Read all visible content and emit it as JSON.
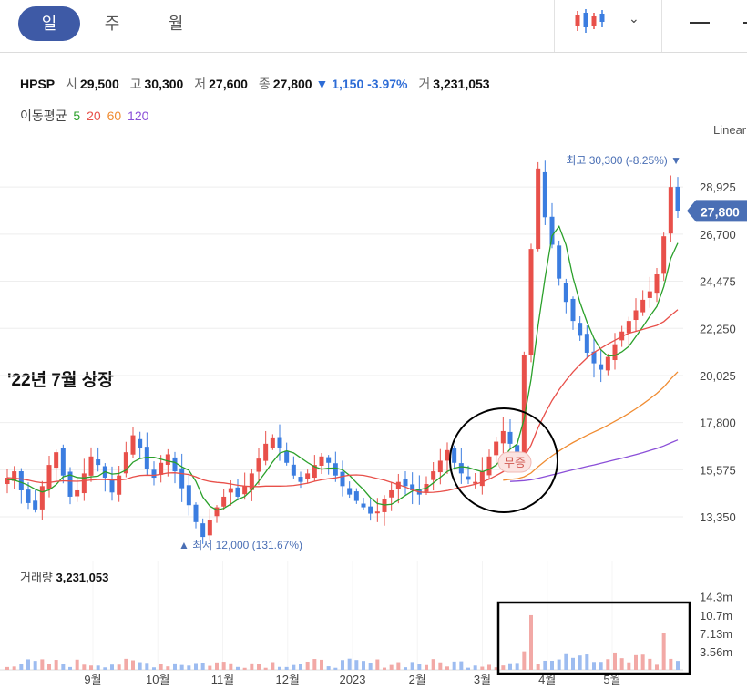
{
  "tabs": [
    {
      "label": "일",
      "active": true
    },
    {
      "label": "주",
      "active": false
    },
    {
      "label": "월",
      "active": false
    }
  ],
  "toolbar": {
    "chart_type_icon": "candlestick-icon",
    "dropdown_icon": "chevron-down-icon",
    "minimize_icon": "minus-icon"
  },
  "quote": {
    "symbol": "HPSP",
    "open_label": "시",
    "open": "29,500",
    "high_label": "고",
    "high": "30,300",
    "low_label": "저",
    "low": "27,600",
    "close_label": "종",
    "close": "27,800",
    "change_arrow": "▼",
    "change": "1,150",
    "change_pct": "-3.97%",
    "volume_label": "거",
    "volume": "3,231,053"
  },
  "moving_average": {
    "label": "이동평균",
    "periods": [
      {
        "value": "5",
        "color": "#2aa02a"
      },
      {
        "value": "20",
        "color": "#e8504a"
      },
      {
        "value": "60",
        "color": "#f08c32"
      },
      {
        "value": "120",
        "color": "#8b4fd8"
      }
    ]
  },
  "scale_label": "Linear",
  "annotation": "'22년 7월 상장",
  "max_marker": {
    "prefix": "최고",
    "value": "30,300 (-8.25%)",
    "arrow": "▼"
  },
  "min_marker": {
    "arrow": "▲",
    "prefix": "최저",
    "value": "12,000 (131.67%)"
  },
  "event_tag": "무증",
  "volume_panel": {
    "label": "거래량",
    "value": "3,231,053",
    "ticks": [
      "14.3m",
      "10.7m",
      "7.13m",
      "3.56m"
    ]
  },
  "colors": {
    "up": "#e8504a",
    "down": "#3b7de0",
    "accent": "#3e5aa6",
    "price_tag": "#4a6fb5"
  },
  "chart_data": {
    "type": "candlestick",
    "price_axis": {
      "ticks": [
        28925,
        26700,
        24475,
        22250,
        20025,
        17800,
        15575,
        13350
      ],
      "tick_labels": [
        "28,925",
        "26,700",
        "24,475",
        "22,250",
        "20,025",
        "17,800",
        "15,575",
        "13,350"
      ],
      "ylim": [
        11500,
        31300
      ],
      "scale": "linear"
    },
    "last_price": {
      "value": 27800,
      "label": "27,800"
    },
    "x_axis": {
      "labels": [
        "9월",
        "10월",
        "11월",
        "12월",
        "2023",
        "2월",
        "3월",
        "4월",
        "5월"
      ]
    },
    "grid": true,
    "max_price": 30300,
    "min_price": 12000,
    "close_series": [
      15200,
      15500,
      14600,
      14000,
      13700,
      14800,
      15800,
      16400,
      15300,
      14300,
      14600,
      15400,
      16200,
      15800,
      15200,
      14500,
      15300,
      16400,
      17200,
      16600,
      15600,
      15200,
      15900,
      16300,
      15500,
      14700,
      13900,
      13100,
      12400,
      13200,
      13800,
      14300,
      14700,
      14300,
      14800,
      15400,
      16100,
      16800,
      17100,
      16600,
      15900,
      15300,
      15000,
      15400,
      15800,
      16200,
      15900,
      15300,
      14800,
      14400,
      14100,
      13800,
      13500,
      13600,
      14200,
      14600,
      15000,
      14800,
      14600,
      14400,
      14900,
      15500,
      16000,
      16500,
      15900,
      15400,
      15100,
      15000,
      15500,
      16200,
      16900,
      17400,
      16800,
      16200,
      21000,
      26000,
      29800,
      27500,
      26200,
      24600,
      23500,
      22600,
      21900,
      21100,
      20600,
      20300,
      20900,
      21500,
      22100,
      22600,
      23100,
      23600,
      24000,
      24800,
      26600,
      28925,
      27800
    ],
    "ma_series": [
      {
        "name": "5",
        "values": [
          15120,
          15080,
          14980,
          14840,
          14650,
          14520,
          14620,
          14870,
          15240,
          15330,
          15210,
          15190,
          15240,
          15270,
          15480,
          15370,
          15400,
          15560,
          15930,
          16100,
          16160,
          16160,
          16070,
          15980,
          15920,
          15710,
          15550,
          15030,
          14280,
          13860,
          13670,
          13750,
          13950,
          14170,
          14310,
          14620,
          15030,
          15470,
          15940,
          16350,
          16470,
          16370,
          16140,
          15910,
          15720,
          15600,
          15650,
          15660,
          15570,
          15310,
          14960,
          14640,
          14250,
          13980,
          13910,
          13940,
          14140,
          14360,
          14570,
          14640,
          14700,
          14950,
          15210,
          15490,
          15650,
          15720,
          15680,
          15570,
          15480,
          15590,
          15800,
          16160,
          16550,
          16790,
          17970,
          19850,
          22380,
          24620,
          26620,
          27070,
          26190,
          24650,
          23470,
          22560,
          21780,
          21240,
          20940,
          20970,
          21140,
          21400,
          21860,
          22330,
          22820,
          23280,
          24230,
          25550,
          26280
        ]
      },
      {
        "name": "20",
        "values": [
          15200,
          15180,
          15140,
          15080,
          15010,
          14960,
          14970,
          15020,
          15050,
          15040,
          15030,
          15050,
          15090,
          15110,
          15110,
          15090,
          15090,
          15130,
          15230,
          15300,
          15320,
          15310,
          15360,
          15420,
          15430,
          15390,
          15350,
          15240,
          15100,
          15020,
          14980,
          14950,
          14900,
          14840,
          14800,
          14780,
          14780,
          14800,
          14800,
          14800,
          14810,
          14830,
          14880,
          14940,
          15030,
          15100,
          15150,
          15190,
          15260,
          15320,
          15330,
          15310,
          15240,
          15160,
          15080,
          14980,
          14870,
          14760,
          14620,
          14520,
          14500,
          14510,
          14540,
          14590,
          14670,
          14750,
          14810,
          14890,
          14990,
          15130,
          15300,
          15480,
          15640,
          15800,
          16170,
          16740,
          17560,
          18230,
          18840,
          19350,
          19790,
          20190,
          20540,
          20850,
          21110,
          21310,
          21510,
          21690,
          21870,
          22020,
          22110,
          22200,
          22300,
          22390,
          22570,
          22860,
          23130
        ]
      },
      {
        "name": "60",
        "values": [
          null,
          null,
          null,
          null,
          null,
          null,
          null,
          null,
          null,
          null,
          null,
          null,
          null,
          null,
          null,
          null,
          null,
          null,
          null,
          null,
          null,
          null,
          null,
          null,
          null,
          null,
          null,
          null,
          null,
          null,
          null,
          null,
          null,
          null,
          null,
          null,
          null,
          null,
          null,
          null,
          null,
          null,
          null,
          null,
          null,
          null,
          null,
          null,
          null,
          null,
          null,
          null,
          null,
          null,
          null,
          null,
          null,
          null,
          null,
          null,
          null,
          null,
          null,
          null,
          null,
          null,
          null,
          null,
          null,
          null,
          null,
          15080,
          15120,
          15150,
          15240,
          15420,
          15720,
          15980,
          16230,
          16460,
          16670,
          16860,
          17030,
          17200,
          17360,
          17510,
          17680,
          17860,
          18040,
          18240,
          18450,
          18680,
          18920,
          19180,
          19480,
          19860,
          20200
        ]
      },
      {
        "name": "120",
        "values": [
          null,
          null,
          null,
          null,
          null,
          null,
          null,
          null,
          null,
          null,
          null,
          null,
          null,
          null,
          null,
          null,
          null,
          null,
          null,
          null,
          null,
          null,
          null,
          null,
          null,
          null,
          null,
          null,
          null,
          null,
          null,
          null,
          null,
          null,
          null,
          null,
          null,
          null,
          null,
          null,
          null,
          null,
          null,
          null,
          null,
          null,
          null,
          null,
          null,
          null,
          null,
          null,
          null,
          null,
          null,
          null,
          null,
          null,
          null,
          null,
          null,
          null,
          null,
          null,
          null,
          null,
          null,
          null,
          null,
          null,
          null,
          null,
          15020,
          15040,
          15060,
          15100,
          15170,
          15250,
          15330,
          15410,
          15490,
          15570,
          15650,
          15730,
          15800,
          15880,
          15960,
          16040,
          16120,
          16200,
          16290,
          16380,
          16480,
          16580,
          16700,
          16840,
          16980
        ]
      }
    ],
    "volume_axis": {
      "ticks": [
        14.3,
        10.7,
        7.13,
        3.56
      ],
      "unit": "m"
    },
    "volume_highlight": {
      "index": 75,
      "value_m": 10.7
    }
  }
}
